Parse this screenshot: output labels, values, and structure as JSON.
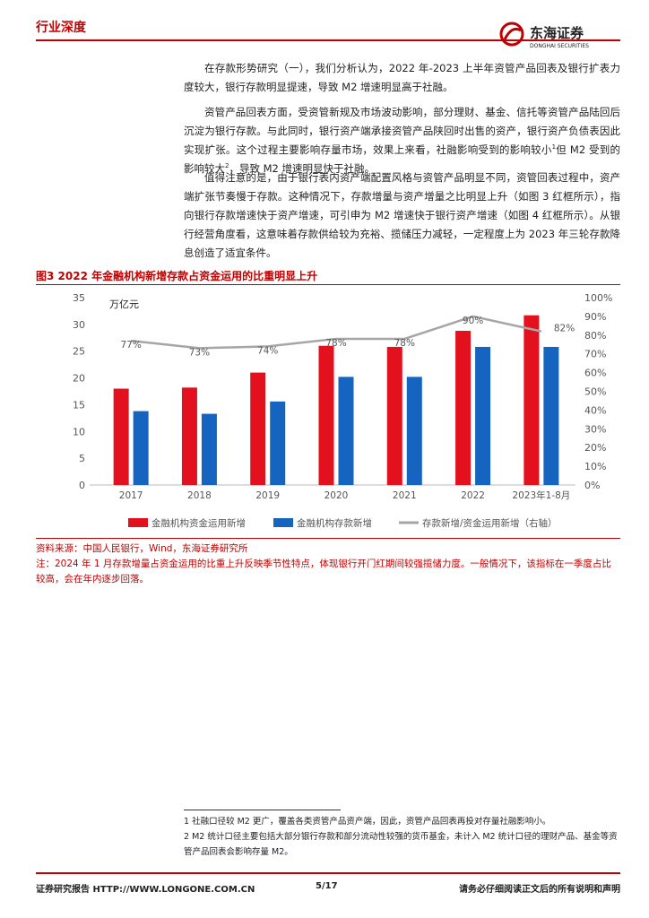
{
  "header": {
    "section": "行业深度",
    "logo_cn": "东海证券",
    "logo_en": "DONGHAI SECURITIES"
  },
  "paragraphs": [
    "在存款形势研究（一），我们分析认为，2022 年-2023 上半年资管产品回表及银行扩表力度较大，银行存款明显提速，导致 M2 增速明显高于社融。",
    [
      "资管产品回表方面，受资管新规及市场波动影响，部分理财、基金、信托等资管产品陆回后沉淀为银行存款。与此同时，银行资产端承接资管产品陕回时出售的资产，银行资产负债表因此实现扩张。这个过程主要影响存量市场，效果上来看，社融影响受到的影响较小",
      "1",
      "但 M2 受到的影响较大",
      "2",
      "，导致 M2 增速明显快于社融。"
    ],
    "值得注意的是，由于银行表内资产端配置风格与资管产品明显不同，资管回表过程中，资产端扩张节奏慢于存款。这种情况下，存款增量与资产增量之比明显上升（如图 3 红框所示），指向银行存款增速快于资产增速，可引申为 M2 增速快于银行资产增速（如图 4 红框所示）。从银行经营角度看，这意味着存款供给较为充裕、揽储压力减轻，一定程度上为 2023 年三轮存款降息创造了适宜条件。"
  ],
  "chart_data": {
    "type": "bar",
    "title": "图3  2022 年金融机构新增存款占资金运用的比重明显上升",
    "y_label": "万亿元",
    "categories": [
      "2017",
      "2018",
      "2019",
      "2020",
      "2021",
      "2022",
      "2023年1-8月"
    ],
    "series": [
      {
        "name": "金融机构资金运用新增",
        "color": "#e3101e",
        "values": [
          18.0,
          18.2,
          21.0,
          26.0,
          25.8,
          28.8,
          31.7
        ]
      },
      {
        "name": "金融机构存款新增",
        "color": "#1565c0",
        "values": [
          13.8,
          13.3,
          15.6,
          20.2,
          20.2,
          25.8,
          25.8
        ]
      },
      {
        "name": "存款新增/资金运用新增（右轴）",
        "color": "#a6a6a6",
        "type": "line",
        "axis": "y2",
        "values": [
          77,
          73,
          74,
          78,
          78,
          90,
          82
        ],
        "value_labels": [
          "77%",
          "73%",
          "74%",
          "78%",
          "78%",
          "90%",
          "82%"
        ]
      }
    ],
    "ylim": [
      0,
      35
    ],
    "yticks": [
      0,
      5,
      10,
      15,
      20,
      25,
      30,
      35
    ],
    "y2lim": [
      0,
      100
    ],
    "y2ticks": [
      {
        "value": 0,
        "label": "0%"
      },
      {
        "value": 10,
        "label": "10%"
      },
      {
        "value": 20,
        "label": "20%"
      },
      {
        "value": 30,
        "label": "30%"
      },
      {
        "value": 40,
        "label": "40%"
      },
      {
        "value": 50,
        "label": "50%"
      },
      {
        "value": 60,
        "label": "60%"
      },
      {
        "value": 70,
        "label": "70%"
      },
      {
        "value": 80,
        "label": "80%"
      },
      {
        "value": 90,
        "label": "90%"
      },
      {
        "value": 100,
        "label": "100%"
      }
    ],
    "grid": false,
    "legend": "bottom"
  },
  "source": "资料来源：中国人民银行，Wind，东海证券研究所",
  "note": "注：2024 年 1 月存款增量占资金运用的比重上升反映季节性特点，体现银行开门红期间较强揽储力度。一般情况下，该指标在一季度占比较高，会在年内逐步回落。",
  "footnotes": [
    "1  社融口径较 M2 更广，覆盖各类资管产品资产端，因此，资管产品回表再投对存量社融影响小。",
    "2  M2 统计口径主要包括大部分银行存款和部分流动性较强的货币基金，未计入 M2 统计口径的理财产品、基金等资管产品回表会影响存量 M2。"
  ],
  "footer": {
    "left": "证券研究报告   HTTP://WWW.LONGONE.COM.CN",
    "page": "5/17",
    "right": "请务必仔细阅读正文后的所有说明和声明"
  }
}
